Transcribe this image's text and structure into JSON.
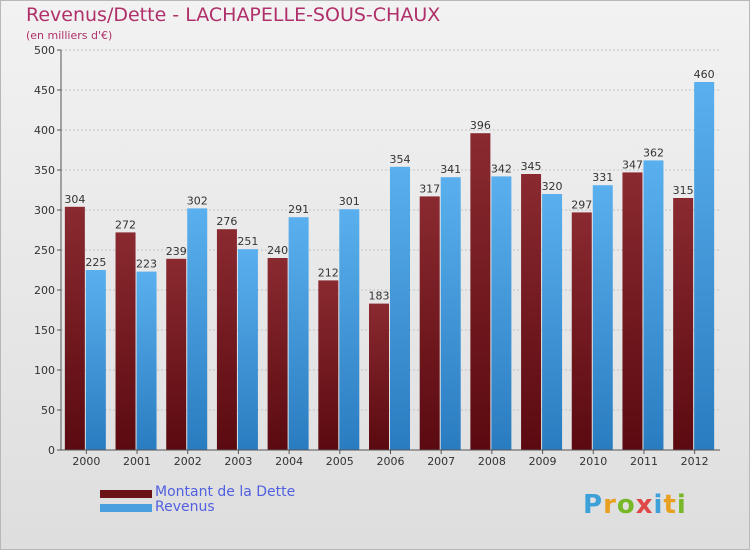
{
  "title": "Revenus/Dette - LACHAPELLE-SOUS-CHAUX",
  "subtitle": "(en milliers d'€)",
  "brand": {
    "letters": [
      "P",
      "r",
      "o",
      "x",
      "i",
      "t",
      "i"
    ],
    "colors": [
      "#3da0d8",
      "#e8a020",
      "#78b828",
      "#e04848",
      "#3da0d8",
      "#e8a020",
      "#78b828"
    ]
  },
  "colors": {
    "debt": "#7a2228",
    "revenue": "#4aa0de",
    "title": "#b0306a",
    "legend_text": "#5060e0"
  },
  "legend": {
    "debt_label": "Montant de la Dette",
    "revenue_label": "Revenus"
  },
  "chart_data": {
    "type": "bar",
    "title": "Revenus/Dette - LACHAPELLE-SOUS-CHAUX",
    "subtitle": "(en milliers d'€)",
    "categories": [
      "2000",
      "2001",
      "2002",
      "2003",
      "2004",
      "2005",
      "2006",
      "2007",
      "2008",
      "2009",
      "2010",
      "2011",
      "2012"
    ],
    "series": [
      {
        "name": "Montant de la Dette",
        "color": "#7a2228",
        "values": [
          304,
          272,
          239,
          276,
          240,
          212,
          183,
          317,
          396,
          345,
          297,
          347,
          315
        ]
      },
      {
        "name": "Revenus",
        "color": "#4aa0de",
        "values": [
          225,
          223,
          302,
          251,
          291,
          301,
          354,
          341,
          342,
          320,
          331,
          362,
          460
        ]
      }
    ],
    "yticks": [
      0,
      50,
      100,
      150,
      200,
      250,
      300,
      350,
      400,
      450,
      500
    ],
    "ylim": [
      0,
      500
    ],
    "grid": true,
    "legend_position": "bottom-left"
  }
}
